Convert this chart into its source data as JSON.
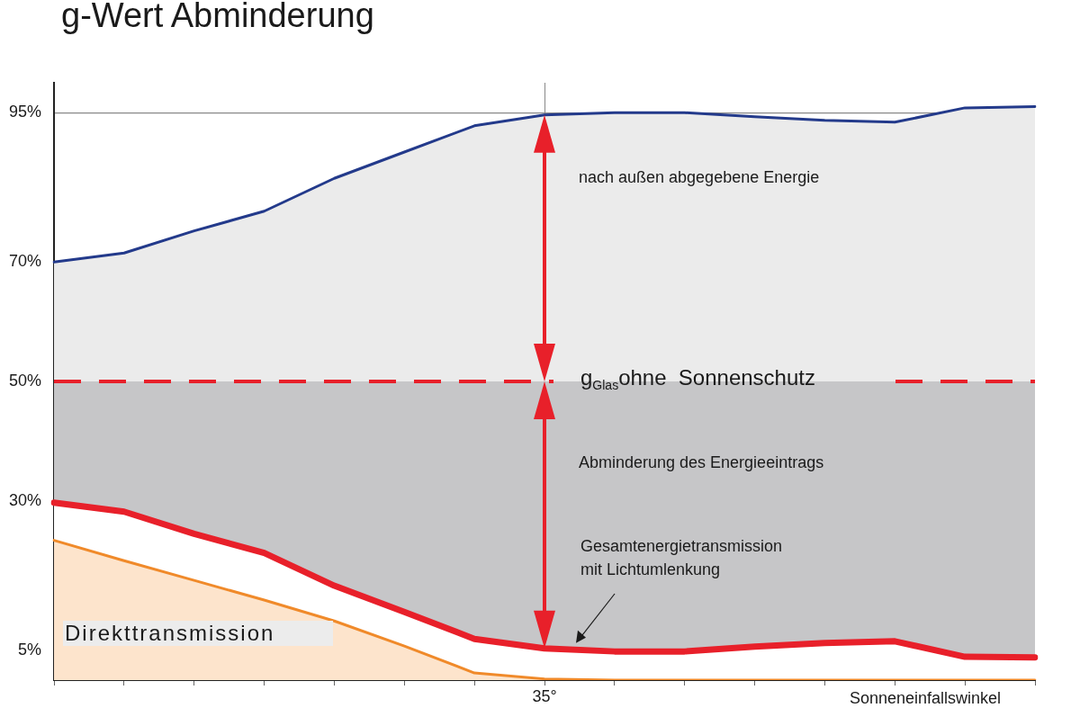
{
  "chart_data": {
    "type": "area",
    "title": "g-Wert Abminderung",
    "xlabel": "Sonneneinfallswinkel",
    "categories": [
      null,
      null,
      null,
      null,
      null,
      null,
      null,
      "35°",
      null,
      null,
      null,
      null,
      null,
      null,
      null
    ],
    "series": [
      {
        "type": "area",
        "color": "#233a8b",
        "values": [
          70,
          71.5,
          75.2,
          78.5,
          84,
          88.4,
          92.8,
          94.6,
          95,
          95,
          94.3,
          93.7,
          93.4,
          95.8,
          96
        ]
      },
      {
        "type": "area",
        "color": "#e8202a",
        "values": [
          29.7,
          28.2,
          24.5,
          21.3,
          15.8,
          11.4,
          6.9,
          5.3,
          4.8,
          4.8,
          5.6,
          6.2,
          6.5,
          3.9,
          3.8
        ]
      },
      {
        "type": "area",
        "color": "#f08a2a",
        "values": [
          23.4,
          20,
          16.7,
          13.4,
          9.9,
          5.7,
          1.2,
          0.2,
          0,
          0,
          0,
          0,
          0,
          0,
          0
        ]
      }
    ],
    "ylim": [
      0,
      100
    ],
    "yticks": [
      {
        "value": 5,
        "label": "5%"
      },
      {
        "value": 30,
        "label": "30%"
      },
      {
        "value": 50,
        "label": "50%"
      },
      {
        "value": 70,
        "label": "70%"
      },
      {
        "value": 95,
        "label": "95%"
      }
    ],
    "grid": true,
    "legend": false,
    "bands": [
      {
        "axis": "y",
        "from": 0,
        "to": 50,
        "color": "#c6c6c8"
      }
    ],
    "ref_lines": [
      {
        "axis": "y",
        "value": 50,
        "label": "g$_{Glas}$ohne  Sonnenschutz",
        "color": "#e8202a",
        "line_style": "dashed"
      }
    ],
    "annotations": [
      "nach außen abgegebene Energie",
      "Abminderung des Energieeintrags",
      "Gesamtenergietransmission\nmit Lichtumlenkung",
      "Direkttransmission"
    ]
  }
}
